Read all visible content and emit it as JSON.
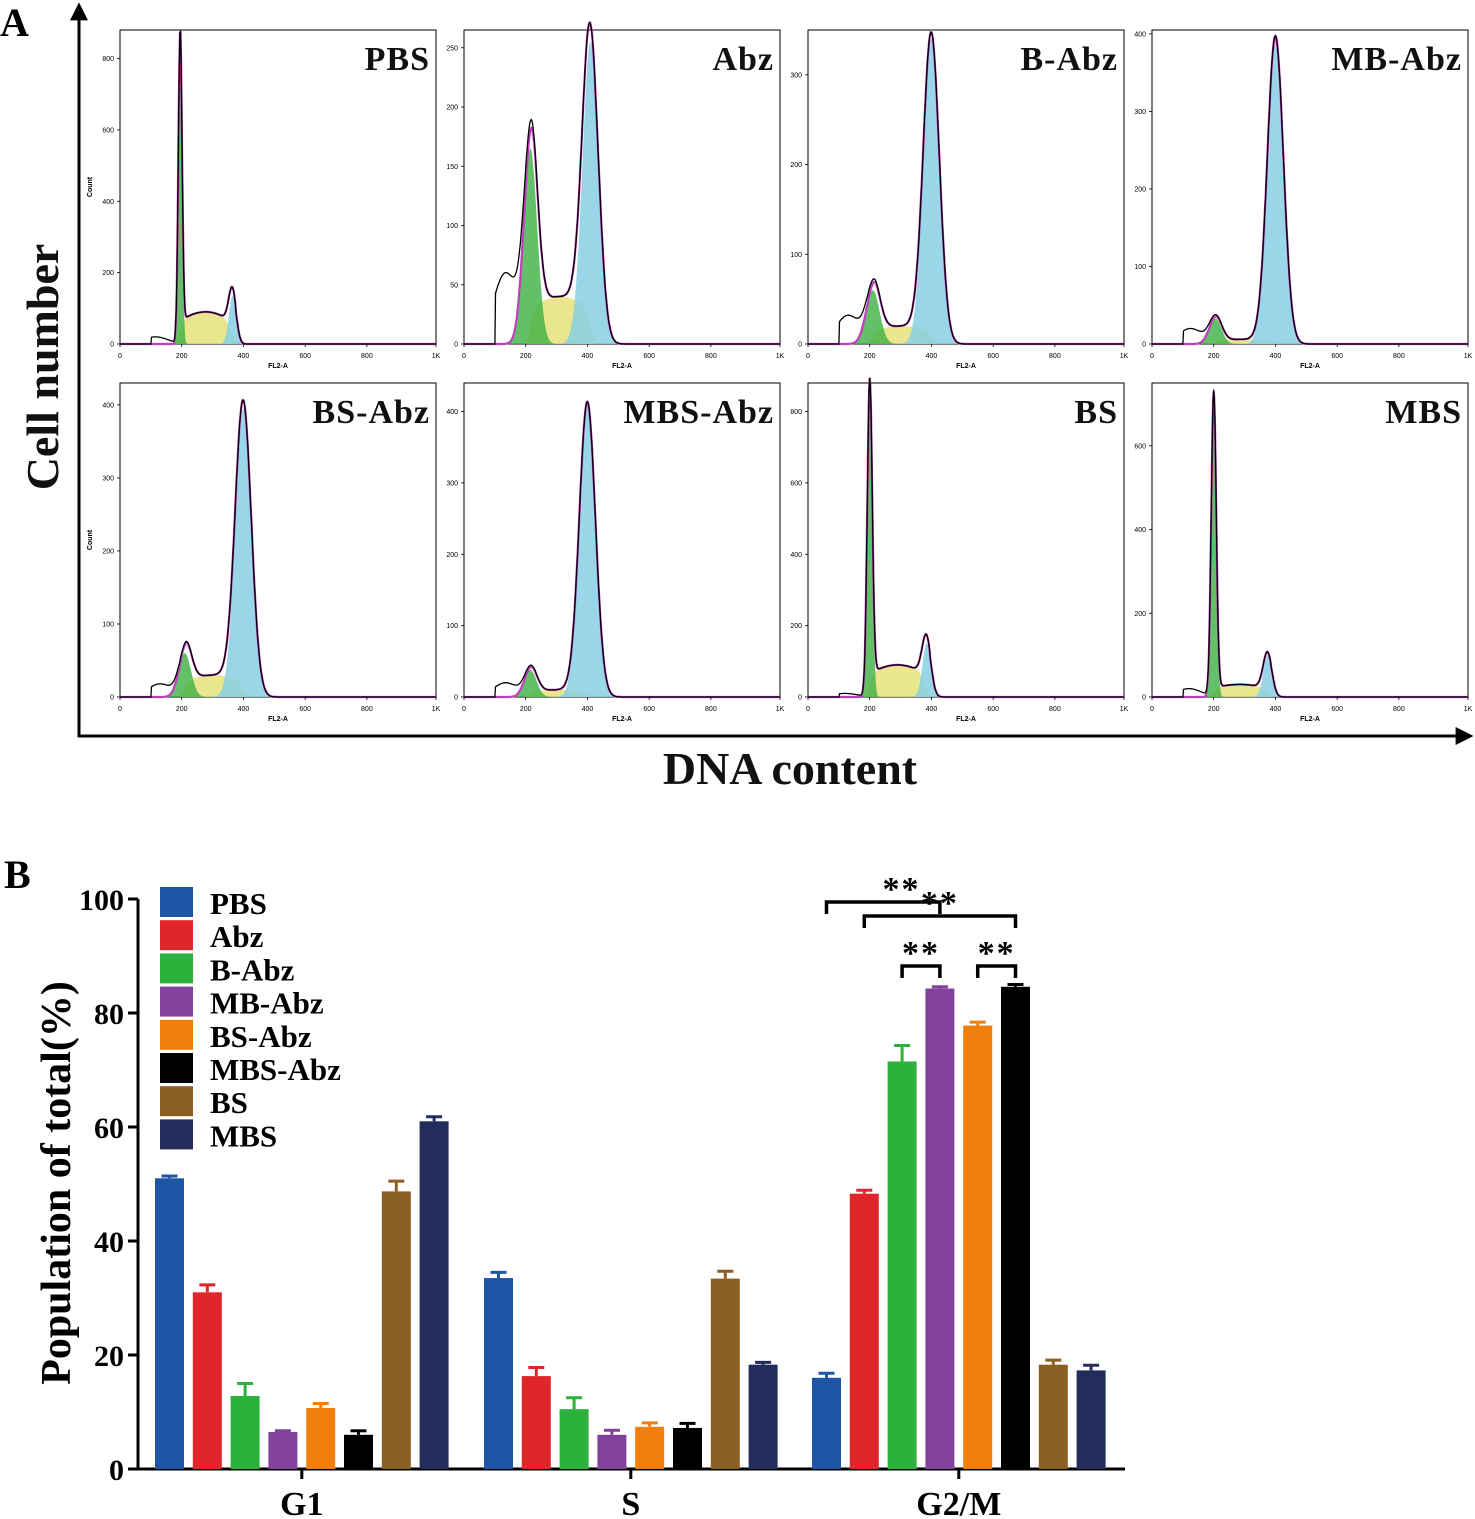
{
  "figure": {
    "panel_a_letter": "A",
    "panel_b_letter": "B",
    "panel_a_ylabel": "Cell number",
    "panel_a_xlabel": "DNA content",
    "histogram_xlabel": "FL2-A",
    "histogram_ylabel": "Count",
    "histogram_xticks": [
      "0",
      "200",
      "400",
      "600",
      "800",
      "1K"
    ],
    "colors": {
      "g1": "#3cb043",
      "s": "#e5e27a",
      "g2m": "#87cfe3",
      "fit": "#c03fbf",
      "raw": "#000000"
    }
  },
  "histograms": [
    {
      "title": "PBS",
      "ymax": 880,
      "yticks": [
        0,
        200,
        400,
        600,
        800
      ],
      "show_count_label": true,
      "g1": {
        "pos": 195,
        "h": 850,
        "w": 6
      },
      "s": {
        "from": 195,
        "to": 360,
        "h": 90
      },
      "g2m": {
        "pos": 365,
        "h": 135,
        "w": 12
      },
      "left": 20
    },
    {
      "title": "Abz",
      "ymax": 265,
      "yticks": [
        0,
        50,
        100,
        150,
        200,
        250
      ],
      "show_count_label": false,
      "g1": {
        "pos": 215,
        "h": 165,
        "w": 22
      },
      "s": {
        "from": 215,
        "to": 410,
        "h": 40
      },
      "g2m": {
        "pos": 410,
        "h": 255,
        "w": 26
      },
      "left": 60
    },
    {
      "title": "B-Abz",
      "ymax": 350,
      "yticks": [
        0,
        100,
        200,
        300
      ],
      "show_count_label": false,
      "g1": {
        "pos": 210,
        "h": 60,
        "w": 22
      },
      "s": {
        "from": 210,
        "to": 400,
        "h": 20
      },
      "g2m": {
        "pos": 400,
        "h": 340,
        "w": 26
      },
      "left": 32
    },
    {
      "title": "MB-Abz",
      "ymax": 405,
      "yticks": [
        0,
        100,
        200,
        300,
        400
      ],
      "show_count_label": false,
      "g1": {
        "pos": 205,
        "h": 33,
        "w": 20
      },
      "s": {
        "from": 205,
        "to": 400,
        "h": 6
      },
      "g2m": {
        "pos": 400,
        "h": 395,
        "w": 26
      },
      "left": 20
    },
    {
      "title": "BS-Abz",
      "ymax": 430,
      "yticks": [
        0,
        100,
        200,
        300,
        400
      ],
      "show_count_label": true,
      "g1": {
        "pos": 210,
        "h": 60,
        "w": 20
      },
      "s": {
        "from": 210,
        "to": 400,
        "h": 30
      },
      "g2m": {
        "pos": 400,
        "h": 395,
        "w": 26
      },
      "left": 18
    },
    {
      "title": "MBS-Abz",
      "ymax": 440,
      "yticks": [
        0,
        100,
        200,
        300,
        400
      ],
      "show_count_label": false,
      "g1": {
        "pos": 215,
        "h": 38,
        "w": 20
      },
      "s": {
        "from": 215,
        "to": 400,
        "h": 10
      },
      "g2m": {
        "pos": 400,
        "h": 410,
        "w": 26
      },
      "left": 20
    },
    {
      "title": "BS",
      "ymax": 880,
      "yticks": [
        0,
        200,
        400,
        600,
        800
      ],
      "show_count_label": false,
      "g1": {
        "pos": 200,
        "h": 860,
        "w": 8
      },
      "s": {
        "from": 200,
        "to": 380,
        "h": 90
      },
      "g2m": {
        "pos": 385,
        "h": 150,
        "w": 14
      },
      "left": 10
    },
    {
      "title": "MBS",
      "ymax": 750,
      "yticks": [
        0,
        200,
        400,
        600
      ],
      "show_count_label": false,
      "g1": {
        "pos": 200,
        "h": 720,
        "w": 8
      },
      "s": {
        "from": 200,
        "to": 370,
        "h": 30
      },
      "g2m": {
        "pos": 375,
        "h": 100,
        "w": 14
      },
      "left": 20
    }
  ],
  "chart_data": {
    "type": "bar",
    "ylabel": "Population of total(%)",
    "xlabel": "",
    "ylim": [
      0,
      100
    ],
    "yticks": [
      0,
      20,
      40,
      60,
      80,
      100
    ],
    "categories": [
      "G1",
      "S",
      "G2/M"
    ],
    "series": [
      {
        "name": "PBS",
        "color": "#1f55a5",
        "values": [
          51.0,
          33.5,
          16.0
        ],
        "errors": [
          0.4,
          1.0,
          0.8
        ]
      },
      {
        "name": "Abz",
        "color": "#e0262a",
        "values": [
          31.0,
          16.3,
          48.3
        ],
        "errors": [
          1.3,
          1.5,
          0.6
        ]
      },
      {
        "name": "B-Abz",
        "color": "#2bb13c",
        "values": [
          12.8,
          10.5,
          71.5
        ],
        "errors": [
          2.2,
          2.0,
          2.8
        ]
      },
      {
        "name": "MB-Abz",
        "color": "#82429b",
        "values": [
          6.5,
          6.0,
          84.3
        ],
        "errors": [
          0.2,
          0.8,
          0.3
        ]
      },
      {
        "name": "BS-Abz",
        "color": "#f07f0d",
        "values": [
          10.7,
          7.4,
          77.8
        ],
        "errors": [
          0.8,
          0.7,
          0.6
        ]
      },
      {
        "name": "MBS-Abz",
        "color": "#000000",
        "values": [
          6.0,
          7.2,
          84.6
        ],
        "errors": [
          0.7,
          0.8,
          0.4
        ]
      },
      {
        "name": "BS",
        "color": "#8b5e24",
        "values": [
          48.7,
          33.4,
          18.3
        ],
        "errors": [
          1.8,
          1.3,
          0.8
        ]
      },
      {
        "name": "MBS",
        "color": "#222d5c",
        "values": [
          61.0,
          18.3,
          17.3
        ],
        "errors": [
          0.8,
          0.4,
          0.9
        ]
      }
    ],
    "significance": [
      {
        "label": "**",
        "from_series": 0,
        "to_series": 3,
        "category": 2,
        "level": 2
      },
      {
        "label": "**",
        "from_series": 1,
        "to_series": 5,
        "category": 2,
        "level": 1
      },
      {
        "label": "**",
        "from_series": 2,
        "to_series": 3,
        "category": 2,
        "level": 0
      },
      {
        "label": "**",
        "from_series": 4,
        "to_series": 5,
        "category": 2,
        "level": 0
      }
    ]
  }
}
